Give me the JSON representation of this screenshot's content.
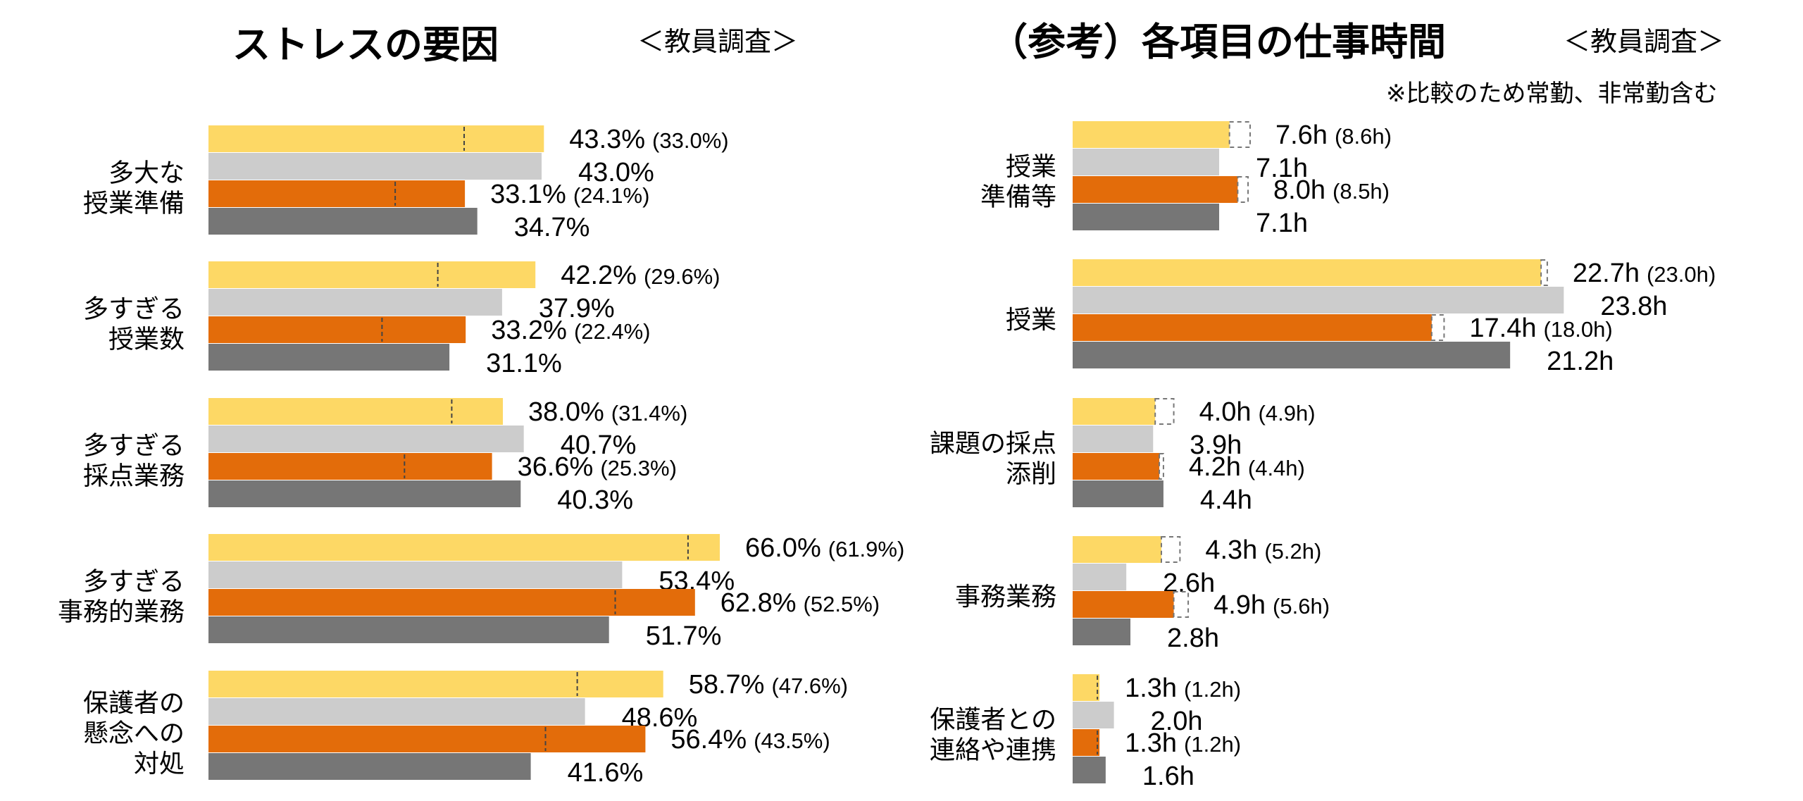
{
  "colors": {
    "yellow": "#FDD865",
    "lightgray": "#CCCCCC",
    "orange": "#E36C0A",
    "darkgray": "#767676"
  },
  "left_title": "ストレスの要因",
  "left_tag": "＜教員調査＞",
  "right_title": "（参考）各項目の仕事時間",
  "right_tag": "＜教員調査＞",
  "right_note": "※比較のため常勤、非常勤含む",
  "chart_data": [
    {
      "type": "bar",
      "orientation": "horizontal",
      "title": "ストレスの要因",
      "unit": "%",
      "xlim": [
        0,
        100
      ],
      "categories": [
        [
          "多大な",
          "授業準備"
        ],
        [
          "多すぎる",
          "授業数"
        ],
        [
          "多すぎる",
          "採点業務"
        ],
        [
          "多すぎる",
          "事務的業務"
        ],
        [
          "保護者の",
          "懸念への",
          "対処"
        ]
      ],
      "series": [
        {
          "color": "yellow",
          "values": [
            43.3,
            42.2,
            38.0,
            66.0,
            58.7
          ],
          "refs": [
            33.0,
            29.6,
            31.4,
            61.9,
            47.6
          ],
          "labels": [
            "43.3%",
            "42.2%",
            "38.0%",
            "66.0%",
            "58.7%"
          ],
          "ref_labels": [
            "(33.0%)",
            "(29.6%)",
            "(31.4%)",
            "(61.9%)",
            "(47.6%)"
          ]
        },
        {
          "color": "lightgray",
          "values": [
            43.0,
            37.9,
            40.7,
            53.4,
            48.6
          ],
          "refs": null,
          "labels": [
            "43.0%",
            "37.9%",
            "40.7%",
            "53.4%",
            "48.6%"
          ],
          "ref_labels": null
        },
        {
          "color": "orange",
          "values": [
            33.1,
            33.2,
            36.6,
            62.8,
            56.4
          ],
          "refs": [
            24.1,
            22.4,
            25.3,
            52.5,
            43.5
          ],
          "labels": [
            "33.1%",
            "33.2%",
            "36.6%",
            "62.8%",
            "56.4%"
          ],
          "ref_labels": [
            "(24.1%)",
            "(22.4%)",
            "(25.3%)",
            "(52.5%)",
            "(43.5%)"
          ]
        },
        {
          "color": "darkgray",
          "values": [
            34.7,
            31.1,
            40.3,
            51.7,
            41.6
          ],
          "refs": null,
          "labels": [
            "34.7%",
            "31.1%",
            "40.3%",
            "51.7%",
            "41.6%"
          ],
          "ref_labels": null
        }
      ]
    },
    {
      "type": "bar",
      "orientation": "horizontal",
      "title": "（参考）各項目の仕事時間",
      "unit": "h",
      "xlim": [
        0,
        30
      ],
      "categories": [
        [
          "授業",
          "準備等"
        ],
        [
          "授業"
        ],
        [
          "課題の採点",
          "添削"
        ],
        [
          "事務業務"
        ],
        [
          "保護者との",
          "連絡や連携"
        ]
      ],
      "series": [
        {
          "color": "yellow",
          "values": [
            7.6,
            22.7,
            4.0,
            4.3,
            1.3
          ],
          "refs": [
            8.6,
            23.0,
            4.9,
            5.2,
            1.2
          ],
          "labels": [
            "7.6h",
            "22.7h",
            "4.0h",
            "4.3h",
            "1.3h"
          ],
          "ref_labels": [
            "(8.6h)",
            "(23.0h)",
            "(4.9h)",
            "(5.2h)",
            "(1.2h)"
          ]
        },
        {
          "color": "lightgray",
          "values": [
            7.1,
            23.8,
            3.9,
            2.6,
            2.0
          ],
          "refs": null,
          "labels": [
            "7.1h",
            "23.8h",
            "3.9h",
            "2.6h",
            "2.0h"
          ],
          "ref_labels": null
        },
        {
          "color": "orange",
          "values": [
            8.0,
            17.4,
            4.2,
            4.9,
            1.3
          ],
          "refs": [
            8.5,
            18.0,
            4.4,
            5.6,
            1.2
          ],
          "labels": [
            "8.0h",
            "17.4h",
            "4.2h",
            "4.9h",
            "1.3h"
          ],
          "ref_labels": [
            "(8.5h)",
            "(18.0h)",
            "(4.4h)",
            "(5.6h)",
            "(1.2h)"
          ]
        },
        {
          "color": "darkgray",
          "values": [
            7.1,
            21.2,
            4.4,
            2.8,
            1.6
          ],
          "refs": null,
          "labels": [
            "7.1h",
            "21.2h",
            "4.4h",
            "2.8h",
            "1.6h"
          ],
          "ref_labels": null
        }
      ]
    }
  ]
}
